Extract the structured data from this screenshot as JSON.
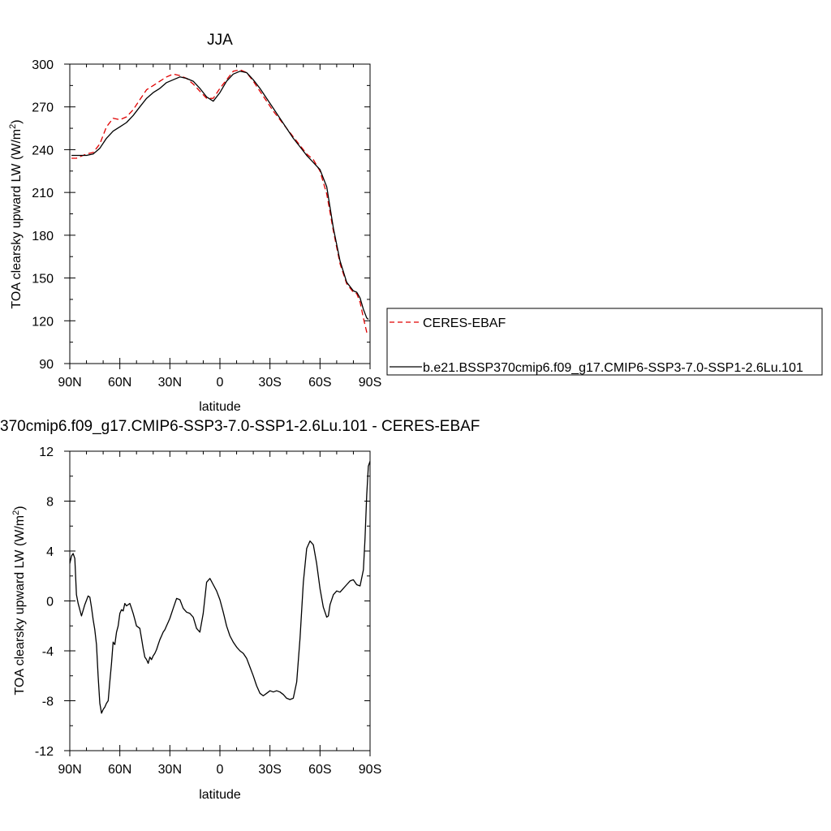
{
  "chart_data": [
    {
      "type": "line",
      "title": "JJA",
      "xlabel": "latitude",
      "ylabel": "TOA clearsky upward LW (W/m",
      "ylabel_sup": "2",
      "ylabel_close": ")",
      "xlim": [
        90,
        -90
      ],
      "ylim": [
        90,
        300
      ],
      "x_ticks": [
        90,
        60,
        30,
        0,
        -30,
        -60,
        -90
      ],
      "x_tick_labels": [
        "90N",
        "60N",
        "30N",
        "0",
        "30S",
        "60S",
        "90S"
      ],
      "y_ticks": [
        90,
        120,
        150,
        180,
        210,
        240,
        270,
        300
      ],
      "y_tick_labels": [
        "90",
        "120",
        "150",
        "180",
        "210",
        "240",
        "270",
        "300"
      ],
      "grid": false,
      "legend_position": "right",
      "x": [
        89,
        86,
        80,
        76,
        72,
        68,
        64,
        60,
        56,
        52,
        48,
        44,
        40,
        36,
        32,
        28,
        24,
        20,
        16,
        12,
        8,
        4,
        0,
        -4,
        -8,
        -12,
        -16,
        -20,
        -24,
        -28,
        -32,
        -36,
        -40,
        -44,
        -48,
        -52,
        -56,
        -60,
        -64,
        -68,
        -72,
        -76,
        -80,
        -82,
        -84,
        -86,
        -88,
        -89
      ],
      "series": [
        {
          "name": "CERES-EBAF",
          "color": "#e00000",
          "dash": "dashed",
          "values": [
            234,
            234,
            237,
            238,
            244,
            256,
            262,
            261,
            263,
            268,
            275,
            282,
            285,
            288,
            291,
            293,
            292,
            290,
            286,
            281,
            276,
            276,
            283,
            289,
            295,
            296,
            294,
            288,
            281,
            274,
            267,
            261,
            255,
            249,
            243,
            237,
            233,
            225,
            209,
            183,
            160,
            146,
            140,
            139,
            133,
            122,
            112,
            110
          ]
        },
        {
          "name": "b.e21.BSSP370cmip6.f09_g17.CMIP6-SSP3-7.0-SSP1-2.6Lu.101",
          "color": "#000000",
          "dash": "solid",
          "values": [
            236,
            236,
            236,
            237,
            241,
            248,
            253,
            256,
            259,
            264,
            270,
            276,
            280,
            283,
            287,
            289,
            291,
            290,
            288,
            283,
            277,
            274,
            280,
            288,
            293,
            295,
            294,
            289,
            283,
            276,
            269,
            262,
            255,
            248,
            242,
            236,
            231,
            226,
            214,
            185,
            162,
            147,
            141,
            140,
            136,
            128,
            122,
            121
          ]
        }
      ]
    },
    {
      "type": "line",
      "title": "370cmip6.f09_g17.CMIP6-SSP3-7.0-SSP1-2.6Lu.101 - CERES-EBAF",
      "xlabel": "latitude",
      "ylabel": "TOA clearsky upward LW (W/m",
      "ylabel_sup": "2",
      "ylabel_close": ")",
      "xlim": [
        90,
        -90
      ],
      "ylim": [
        -12,
        12
      ],
      "x_ticks": [
        90,
        60,
        30,
        0,
        -30,
        -60,
        -90
      ],
      "x_tick_labels": [
        "90N",
        "60N",
        "30N",
        "0",
        "30S",
        "60S",
        "90S"
      ],
      "y_ticks": [
        -12,
        -8,
        -4,
        0,
        4,
        8,
        12
      ],
      "y_tick_labels": [
        "-12",
        "-8",
        "-4",
        "0",
        "4",
        "8",
        "12"
      ],
      "grid": false,
      "x": [
        90,
        89,
        88,
        87,
        86,
        85,
        83,
        81,
        79,
        78,
        77,
        76,
        75,
        74,
        73,
        72,
        71,
        70,
        69,
        68,
        67,
        66,
        65,
        64,
        63,
        62,
        61,
        60,
        59,
        58,
        57,
        56,
        55,
        54,
        53,
        52,
        51,
        50,
        49,
        48,
        47,
        46,
        45,
        44,
        43,
        42,
        41,
        40,
        39,
        38,
        37,
        36,
        35,
        34,
        33,
        32,
        31,
        30,
        28,
        26,
        24,
        22,
        20,
        18,
        16,
        14,
        12,
        10,
        8,
        6,
        4,
        2,
        0,
        -2,
        -4,
        -6,
        -8,
        -10,
        -12,
        -14,
        -16,
        -18,
        -20,
        -22,
        -24,
        -26,
        -28,
        -30,
        -32,
        -34,
        -36,
        -38,
        -40,
        -42,
        -44,
        -46,
        -48,
        -50,
        -52,
        -54,
        -56,
        -58,
        -60,
        -62,
        -64,
        -65,
        -66,
        -68,
        -70,
        -72,
        -74,
        -76,
        -78,
        -80,
        -82,
        -84,
        -86,
        -87,
        -88,
        -89,
        -90
      ],
      "series": [
        {
          "name": "",
          "color": "#000000",
          "dash": "solid",
          "values": [
            3.0,
            3.6,
            3.8,
            3.4,
            0.5,
            -0.2,
            -1.2,
            -0.3,
            0.4,
            0.3,
            -0.5,
            -1.5,
            -2.3,
            -3.5,
            -6.0,
            -8.2,
            -9.0,
            -8.7,
            -8.5,
            -8.2,
            -8.0,
            -6.5,
            -5.0,
            -3.3,
            -3.5,
            -2.5,
            -2.0,
            -1.0,
            -0.7,
            -0.8,
            -0.2,
            -0.4,
            -0.3,
            -0.2,
            -0.6,
            -1.0,
            -1.5,
            -2.0,
            -2.1,
            -2.2,
            -3.0,
            -3.8,
            -4.5,
            -4.7,
            -5.0,
            -4.5,
            -4.7,
            -4.4,
            -4.2,
            -3.9,
            -3.5,
            -3.1,
            -2.8,
            -2.5,
            -2.3,
            -2.0,
            -1.7,
            -1.4,
            -0.6,
            0.2,
            0.1,
            -0.6,
            -0.9,
            -1.0,
            -1.3,
            -2.2,
            -2.5,
            -1.0,
            1.5,
            1.8,
            1.3,
            0.8,
            0.1,
            -0.9,
            -2.0,
            -2.8,
            -3.3,
            -3.7,
            -4.0,
            -4.2,
            -4.6,
            -5.3,
            -6.0,
            -6.8,
            -7.4,
            -7.6,
            -7.4,
            -7.2,
            -7.3,
            -7.2,
            -7.3,
            -7.5,
            -7.8,
            -7.9,
            -7.8,
            -6.5,
            -3.0,
            1.5,
            4.2,
            4.8,
            4.5,
            3.0,
            1.0,
            -0.5,
            -1.3,
            -1.2,
            -0.3,
            0.5,
            0.8,
            0.7,
            1.0,
            1.3,
            1.6,
            1.7,
            1.3,
            1.2,
            2.5,
            5.0,
            8.5,
            10.8,
            11.2
          ]
        }
      ]
    }
  ]
}
